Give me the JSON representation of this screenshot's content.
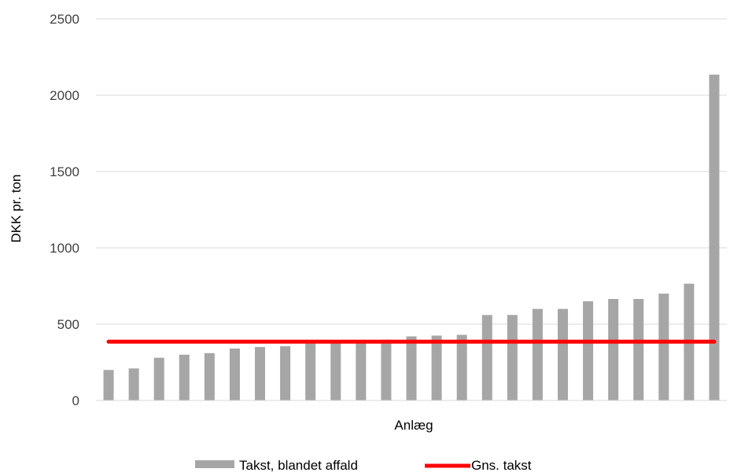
{
  "chart_data": {
    "type": "bar",
    "xlabel": "Anlæg",
    "ylabel": "DKK pr. ton",
    "ylim": [
      0,
      2500
    ],
    "yticks": [
      "0",
      "500",
      "1000",
      "1500",
      "2000",
      "2500"
    ],
    "grid": true,
    "legend_position": "bottom",
    "bar_color": "#a6a6a6",
    "line_color": "#ff0000",
    "series": [
      {
        "name": "Takst, blandet affald",
        "kind": "bar",
        "values": [
          200,
          210,
          280,
          300,
          310,
          340,
          350,
          355,
          380,
          390,
          395,
          398,
          420,
          425,
          430,
          560,
          560,
          600,
          600,
          650,
          665,
          665,
          700,
          765,
          2135
        ]
      },
      {
        "name": "Gns. takst",
        "kind": "line",
        "value": 385
      }
    ]
  }
}
